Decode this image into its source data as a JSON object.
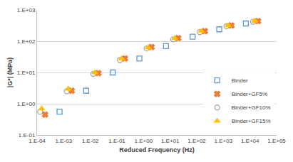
{
  "chart_data": {
    "type": "scatter",
    "x_label": "Reduced Frequency (Hz)",
    "y_label": "|G*| (MPa)",
    "log": true,
    "grid": "y",
    "legend": "lower right",
    "xlim": [
      0.0001,
      100000
    ],
    "ylim": [
      0.1,
      1000
    ],
    "xticks": [
      {
        "value": 0.0001,
        "label": "1.E-04"
      },
      {
        "value": 0.001,
        "label": "1.E-03"
      },
      {
        "value": 0.01,
        "label": "1.E-02"
      },
      {
        "value": 0.1,
        "label": "1.E-01"
      },
      {
        "value": 1,
        "label": "1.E+00"
      },
      {
        "value": 10,
        "label": "1.E+01"
      },
      {
        "value": 100,
        "label": "1.E+02"
      },
      {
        "value": 1000,
        "label": "1.E+03"
      },
      {
        "value": 10000,
        "label": "1.E+04"
      },
      {
        "value": 100000,
        "label": "1.E+05"
      }
    ],
    "yticks": [
      {
        "value": 0.1,
        "label": "1.E-01"
      },
      {
        "value": 1,
        "label": "1.E+00"
      },
      {
        "value": 10,
        "label": "1.E+01"
      },
      {
        "value": 100,
        "label": "1.E+02"
      },
      {
        "value": 1000,
        "label": "1.E+03"
      }
    ],
    "series": [
      {
        "name": "Binder",
        "color": "#5B9BD5",
        "marker": "square-open",
        "x": [
          0.0007,
          0.007,
          0.07,
          0.7,
          7,
          70,
          700,
          7000
        ],
        "values": [
          0.55,
          2.6,
          10,
          28,
          70,
          140,
          240,
          370
        ]
      },
      {
        "name": "Binder+GF5%",
        "color": "#ED7D31",
        "marker": "x",
        "x": [
          0.0002,
          0.002,
          0.02,
          0.2,
          2,
          20,
          200,
          2000,
          20000
        ],
        "values": [
          0.45,
          2.6,
          9.5,
          28,
          65,
          125,
          210,
          320,
          440
        ]
      },
      {
        "name": "Binder+GF10%",
        "color": "#A5A5A5",
        "marker": "circle-open",
        "x": [
          0.00013,
          0.0013,
          0.013,
          0.13,
          1.3,
          13,
          130,
          1300,
          13000
        ],
        "values": [
          0.55,
          2.5,
          9,
          25,
          58,
          115,
          195,
          300,
          420
        ]
      },
      {
        "name": "Binder+GF15%",
        "color": "#FFC000",
        "marker": "triangle-up",
        "x": [
          0.00015,
          0.0015,
          0.015,
          0.15,
          1.5,
          15,
          150,
          1500,
          15000
        ],
        "values": [
          0.7,
          3,
          10,
          28,
          63,
          125,
          210,
          320,
          450
        ]
      }
    ]
  }
}
